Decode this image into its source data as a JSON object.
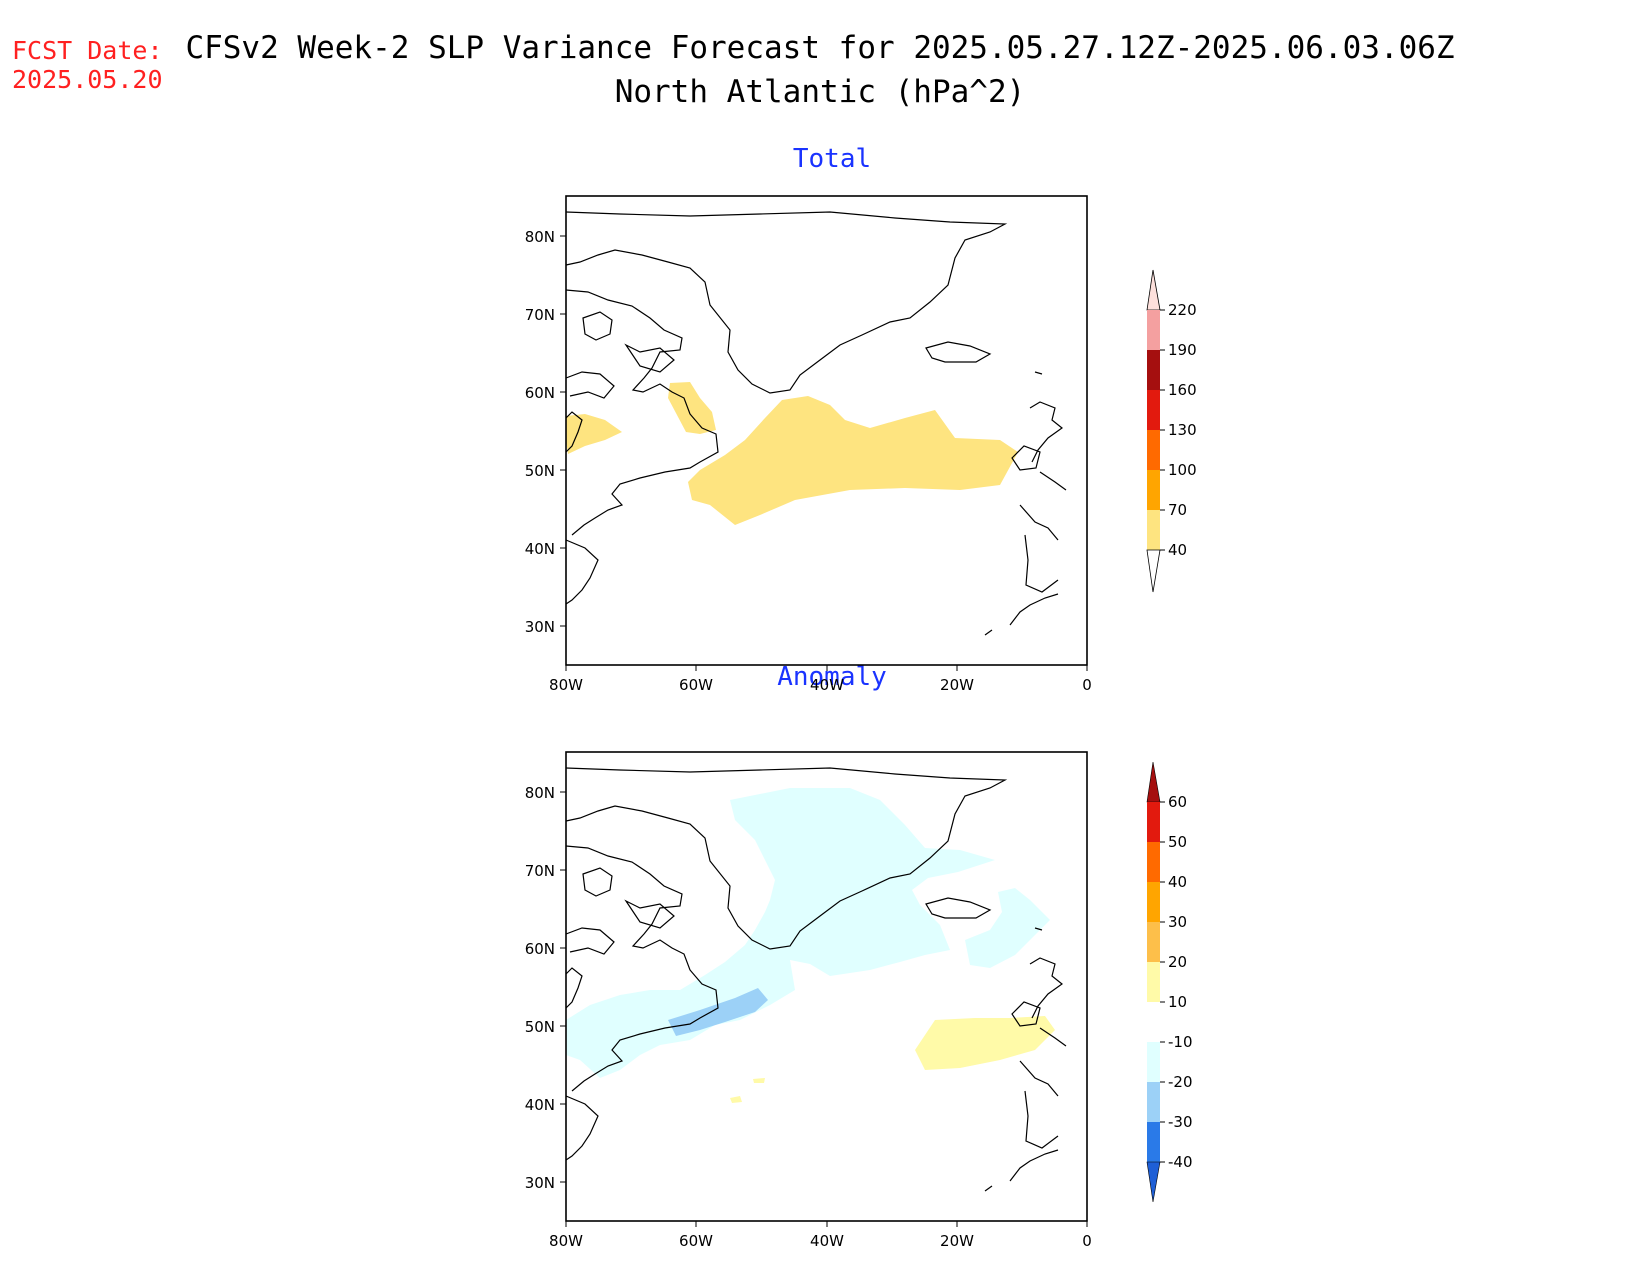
{
  "header": {
    "fcst_label": "FCST Date:",
    "fcst_date": "2025.05.20",
    "title": "CFSv2 Week-2 SLP Variance Forecast for 2025.05.27.12Z-2025.06.03.06Z",
    "subtitle": "North Atlantic (hPa^2)"
  },
  "axes": {
    "lon_labels": [
      "80W",
      "60W",
      "40W",
      "20W",
      "0"
    ],
    "lat_labels": [
      "80N",
      "70N",
      "60N",
      "50N",
      "40N",
      "30N"
    ]
  },
  "panels": [
    {
      "title": "Total",
      "colorbar": {
        "labels": [
          "220",
          "190",
          "160",
          "130",
          "100",
          "70",
          "40"
        ],
        "colors": [
          "#fde0dc",
          "#f4a0a0",
          "#a50f0f",
          "#e21a0e",
          "#ff6a00",
          "#ffa500",
          "#fee480"
        ]
      }
    },
    {
      "title": "Anomaly",
      "colorbar": {
        "labels": [
          "60",
          "50",
          "40",
          "30",
          "20",
          "10",
          "-10",
          "-20",
          "-30",
          "-40"
        ],
        "colors": [
          "#a50f0f",
          "#e21a0e",
          "#ff6a00",
          "#ffa500",
          "#fdbf4a",
          "#fffaa8",
          "#ffffff",
          "#e0ffff",
          "#9cd1f7",
          "#5aa7f0",
          "#2a7ae8",
          "#1e5fd6"
        ]
      }
    }
  ]
}
